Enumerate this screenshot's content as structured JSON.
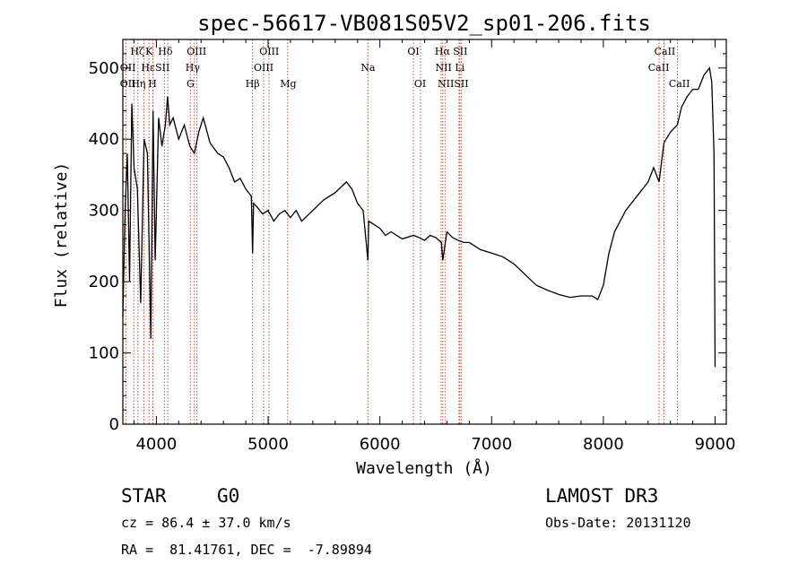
{
  "chart_data": {
    "type": "line",
    "title": "spec-56617-VB081S05V2_sp01-206.fits",
    "xlabel": "Wavelength (Å)",
    "ylabel": "Flux (relative)",
    "xlim": [
      3700,
      9100
    ],
    "ylim": [
      0,
      540
    ],
    "xticks": [
      4000,
      5000,
      6000,
      7000,
      8000,
      9000
    ],
    "yticks": [
      0,
      100,
      200,
      300,
      400,
      500
    ],
    "grid": false,
    "series": [
      {
        "name": "spectrum",
        "color": "#000000",
        "x": [
          3700,
          3720,
          3740,
          3760,
          3780,
          3800,
          3830,
          3860,
          3890,
          3920,
          3950,
          3970,
          3990,
          4020,
          4050,
          4080,
          4100,
          4120,
          4150,
          4200,
          4250,
          4300,
          4340,
          4380,
          4420,
          4480,
          4550,
          4600,
          4650,
          4700,
          4750,
          4800,
          4850,
          4861,
          4870,
          4900,
          4950,
          5000,
          5050,
          5100,
          5150,
          5200,
          5250,
          5300,
          5400,
          5500,
          5600,
          5700,
          5750,
          5800,
          5850,
          5893,
          5900,
          5950,
          6000,
          6050,
          6100,
          6200,
          6300,
          6350,
          6400,
          6450,
          6500,
          6550,
          6563,
          6600,
          6650,
          6700,
          6750,
          6800,
          6900,
          7000,
          7100,
          7200,
          7300,
          7400,
          7500,
          7600,
          7700,
          7800,
          7900,
          7950,
          8000,
          8050,
          8100,
          8200,
          8300,
          8400,
          8450,
          8498,
          8542,
          8600,
          8662,
          8700,
          8750,
          8800,
          8850,
          8900,
          8950,
          8970,
          8990,
          9000
        ],
        "y": [
          150,
          300,
          380,
          200,
          450,
          360,
          330,
          170,
          400,
          380,
          120,
          440,
          230,
          430,
          390,
          420,
          460,
          420,
          430,
          400,
          420,
          390,
          380,
          410,
          430,
          395,
          380,
          375,
          360,
          340,
          345,
          330,
          320,
          240,
          310,
          305,
          295,
          300,
          285,
          295,
          300,
          290,
          300,
          285,
          300,
          315,
          325,
          340,
          330,
          310,
          300,
          230,
          285,
          280,
          275,
          265,
          270,
          260,
          265,
          262,
          258,
          265,
          262,
          255,
          230,
          270,
          262,
          258,
          255,
          255,
          245,
          240,
          235,
          225,
          210,
          195,
          188,
          182,
          178,
          180,
          180,
          175,
          195,
          240,
          270,
          300,
          320,
          340,
          360,
          340,
          395,
          410,
          420,
          445,
          460,
          470,
          470,
          490,
          500,
          480,
          380,
          80
        ]
      }
    ],
    "lines": [
      {
        "name": "OII",
        "x": 3727
      },
      {
        "name": "Hθ",
        "x": 3798
      },
      {
        "name": "Hη",
        "x": 3835
      },
      {
        "name": "Hζ",
        "x": 3889
      },
      {
        "name": "CaII K",
        "x": 3934
      },
      {
        "name": "CaII H",
        "x": 3969
      },
      {
        "name": "Hδ",
        "x": 4102
      },
      {
        "name": "SII",
        "x": 4072
      },
      {
        "name": "G",
        "x": 4304
      },
      {
        "name": "Hγ",
        "x": 4340
      },
      {
        "name": "OIII",
        "x": 4363
      },
      {
        "name": "Hβ",
        "x": 4861
      },
      {
        "name": "OIII",
        "x": 4959
      },
      {
        "name": "OIII",
        "x": 5007
      },
      {
        "name": "Mg",
        "x": 5175
      },
      {
        "name": "Na",
        "x": 5893
      },
      {
        "name": "OI",
        "x": 6300
      },
      {
        "name": "OI",
        "x": 6364
      },
      {
        "name": "NII",
        "x": 6548
      },
      {
        "name": "Hα",
        "x": 6563
      },
      {
        "name": "NII",
        "x": 6583
      },
      {
        "name": "Li",
        "x": 6708
      },
      {
        "name": "SII",
        "x": 6716
      },
      {
        "name": "SII",
        "x": 6731
      },
      {
        "name": "CaII",
        "x": 8498
      },
      {
        "name": "CaII",
        "x": 8542
      },
      {
        "name": "CaII",
        "x": 8662
      }
    ],
    "labels": [
      {
        "text": "Hζ",
        "x": 3830,
        "row": 0
      },
      {
        "text": "K",
        "x": 3935,
        "row": 0
      },
      {
        "text": "Hδ",
        "x": 4080,
        "row": 0
      },
      {
        "text": "OIII",
        "x": 4360,
        "row": 0
      },
      {
        "text": "OIII",
        "x": 5010,
        "row": 0
      },
      {
        "text": "OI",
        "x": 6300,
        "row": 0
      },
      {
        "text": "Hα",
        "x": 6560,
        "row": 0
      },
      {
        "text": "SII",
        "x": 6720,
        "row": 0
      },
      {
        "text": "CaII",
        "x": 8550,
        "row": 0
      },
      {
        "text": "OII",
        "x": 3745,
        "row": 1
      },
      {
        "text": "Hε",
        "x": 3925,
        "row": 1
      },
      {
        "text": "SII",
        "x": 4055,
        "row": 1
      },
      {
        "text": "Hγ",
        "x": 4325,
        "row": 1
      },
      {
        "text": "OIII",
        "x": 4960,
        "row": 1
      },
      {
        "text": "Na",
        "x": 5893,
        "row": 1
      },
      {
        "text": "NII",
        "x": 6570,
        "row": 1
      },
      {
        "text": "Li",
        "x": 6715,
        "row": 1
      },
      {
        "text": "CaII",
        "x": 8495,
        "row": 1
      },
      {
        "text": "OII",
        "x": 3745,
        "row": 2
      },
      {
        "text": "Hη",
        "x": 3840,
        "row": 2
      },
      {
        "text": "H",
        "x": 3965,
        "row": 2
      },
      {
        "text": "G",
        "x": 4305,
        "row": 2
      },
      {
        "text": "Hβ",
        "x": 4861,
        "row": 2
      },
      {
        "text": "Mg",
        "x": 5180,
        "row": 2
      },
      {
        "text": "OI",
        "x": 6360,
        "row": 2
      },
      {
        "text": "NIISII",
        "x": 6655,
        "row": 2
      },
      {
        "text": "CaII",
        "x": 8680,
        "row": 2
      }
    ]
  },
  "info": {
    "object_type": "STAR",
    "subclass": "G0",
    "survey": "LAMOST DR3",
    "redshift": "cz = 86.4 ± 37.0 km/s",
    "obs_date": "Obs-Date: 20131120",
    "coords": "RA =  81.41761, DEC =  -7.89894"
  }
}
